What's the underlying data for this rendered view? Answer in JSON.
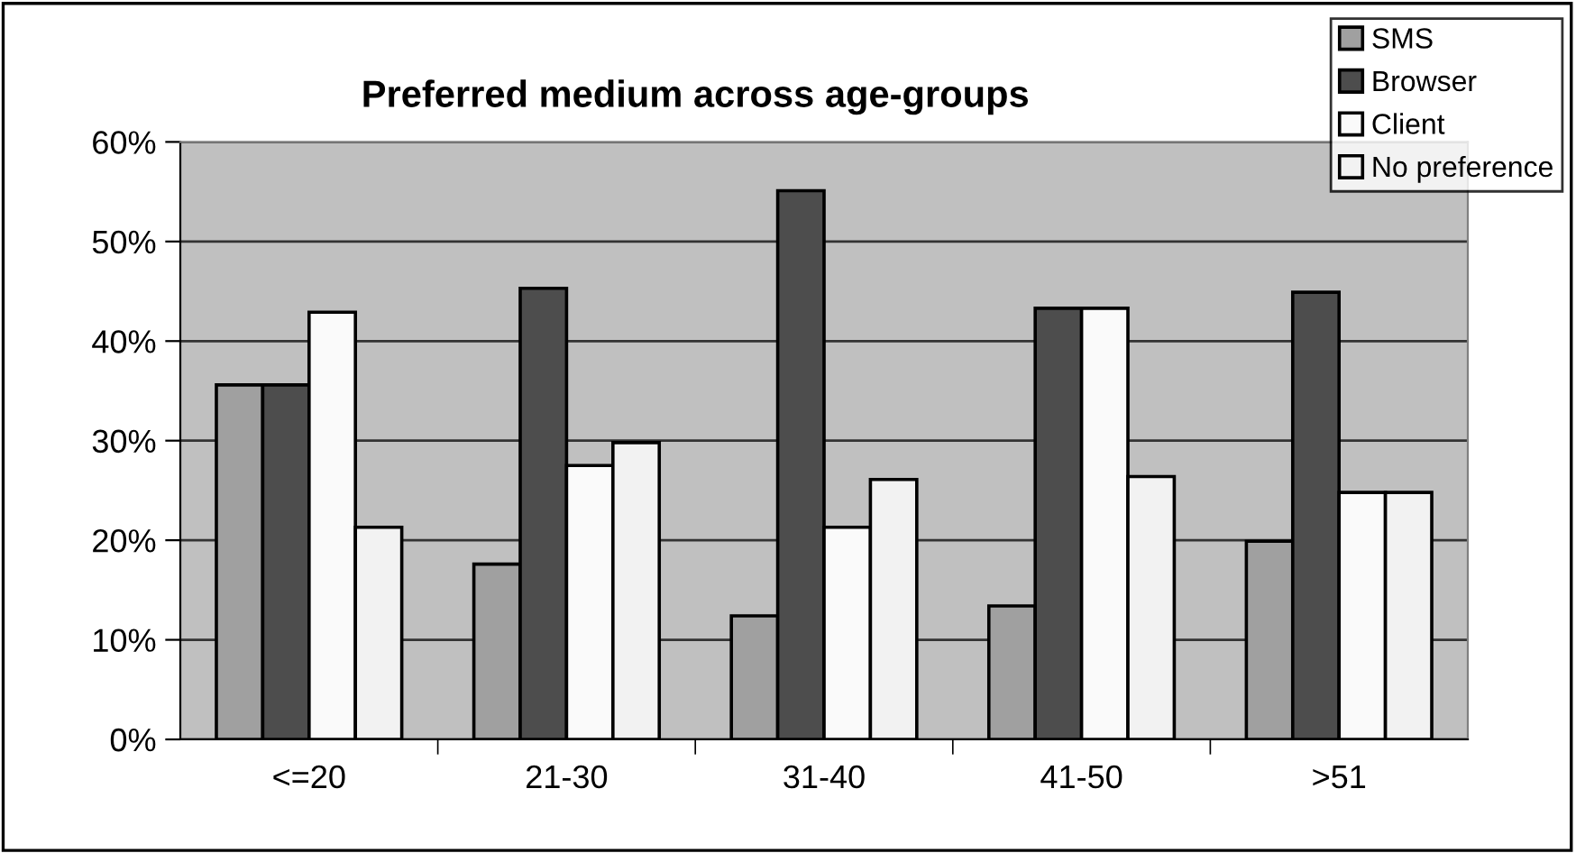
{
  "chart_data": {
    "type": "bar",
    "title": "Preferred medium across age-groups",
    "categories": [
      "<=20",
      "21-30",
      "31-40",
      "41-50",
      ">51"
    ],
    "series": [
      {
        "name": "SMS",
        "color": "#a0a0a0",
        "values": [
          35.6,
          17.6,
          12.4,
          13.4,
          19.9
        ]
      },
      {
        "name": "Browser",
        "color": "#4d4d4d",
        "values": [
          35.6,
          45.3,
          55.1,
          43.3,
          44.9
        ]
      },
      {
        "name": "Client",
        "color": "#fafafa",
        "values": [
          42.9,
          27.5,
          21.3,
          43.3,
          24.8
        ]
      },
      {
        "name": "No preference",
        "color": "#f2f2f2",
        "values": [
          21.3,
          29.8,
          26.1,
          26.4,
          24.8
        ]
      }
    ],
    "ylim": [
      0,
      60
    ],
    "yticks": [
      {
        "value": 0,
        "label": "0%"
      },
      {
        "value": 10,
        "label": "10%"
      },
      {
        "value": 20,
        "label": "20%"
      },
      {
        "value": 30,
        "label": "30%"
      },
      {
        "value": 40,
        "label": "40%"
      },
      {
        "value": 50,
        "label": "50%"
      },
      {
        "value": 60,
        "label": "60%"
      }
    ],
    "grid": "y",
    "legend": "top right"
  }
}
